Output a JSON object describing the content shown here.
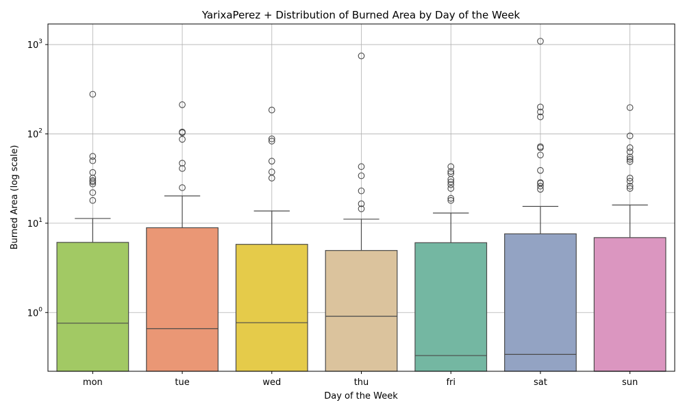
{
  "chart_data": {
    "type": "box",
    "title": "YarixaPerez + Distribution of Burned Area by Day of the Week",
    "xlabel": "Day of the Week",
    "ylabel": "Burned Area (log scale)",
    "yscale": "log",
    "ylim": [
      0.22,
      1700
    ],
    "yticks": [
      {
        "value": 1,
        "base": "10",
        "exp": "0"
      },
      {
        "value": 10,
        "base": "10",
        "exp": "1"
      },
      {
        "value": 100,
        "base": "10",
        "exp": "2"
      },
      {
        "value": 1000,
        "base": "10",
        "exp": "3"
      }
    ],
    "grid": true,
    "categories": [
      "mon",
      "tue",
      "wed",
      "thu",
      "fri",
      "sat",
      "sun"
    ],
    "colors": [
      "#a2c964",
      "#ea9775",
      "#e5cb4a",
      "#dbc39d",
      "#74b7a2",
      "#93a3c3",
      "#db96c0"
    ],
    "boxes": [
      {
        "q1": 0.2,
        "median": 0.76,
        "q3": 6.1,
        "whisker_low": 0.2,
        "whisker_high": 11.3,
        "fliers": [
          278,
          56,
          50,
          37,
          32,
          30,
          29,
          27.5,
          22,
          18
        ]
      },
      {
        "q1": 0.2,
        "median": 0.66,
        "q3": 8.9,
        "whisker_low": 0.2,
        "whisker_high": 20.2,
        "fliers": [
          212,
          105,
          103,
          87,
          47,
          41,
          25
        ]
      },
      {
        "q1": 0.2,
        "median": 0.77,
        "q3": 5.8,
        "whisker_low": 0.2,
        "whisker_high": 13.7,
        "fliers": [
          185,
          88,
          83,
          49.5,
          37.5,
          32
        ]
      },
      {
        "q1": 0.2,
        "median": 0.91,
        "q3": 4.95,
        "whisker_low": 0.2,
        "whisker_high": 11.1,
        "fliers": [
          746,
          43,
          34,
          23,
          16.5,
          14.5
        ]
      },
      {
        "q1": 0.2,
        "median": 0.33,
        "q3": 6.05,
        "whisker_low": 0.2,
        "whisker_high": 13.0,
        "fliers": [
          43,
          38,
          36,
          31,
          29,
          27,
          24.5,
          19,
          18
        ]
      },
      {
        "q1": 0.2,
        "median": 0.34,
        "q3": 7.6,
        "whisker_low": 0.2,
        "whisker_high": 15.4,
        "fliers": [
          1090,
          200,
          176,
          155,
          72,
          70,
          58,
          39,
          28.5,
          28,
          26,
          24
        ]
      },
      {
        "q1": 0.2,
        "median": 0.2,
        "q3": 6.9,
        "whisker_low": 0.2,
        "whisker_high": 16.0,
        "fliers": [
          197,
          95,
          70,
          63,
          55,
          52,
          49,
          32,
          29.5,
          26,
          24.5
        ]
      }
    ]
  }
}
